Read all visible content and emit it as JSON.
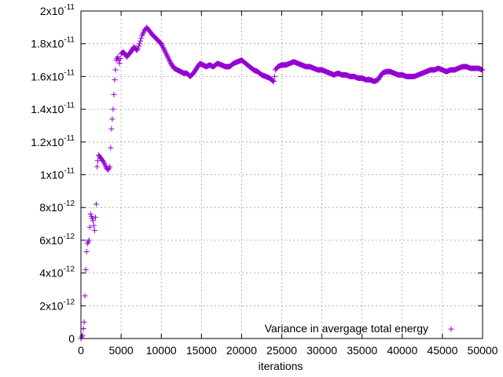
{
  "chart_data": {
    "type": "scatter",
    "xlabel": "iterations",
    "ylabel": "",
    "xlim": [
      0,
      50000
    ],
    "ylim": [
      0,
      2e-11
    ],
    "grid": true,
    "legend_position": "bottom-right",
    "x_ticks": [
      {
        "value": 0,
        "label": "0"
      },
      {
        "value": 5000,
        "label": "5000"
      },
      {
        "value": 10000,
        "label": "10000"
      },
      {
        "value": 15000,
        "label": "15000"
      },
      {
        "value": 20000,
        "label": "20000"
      },
      {
        "value": 25000,
        "label": "25000"
      },
      {
        "value": 30000,
        "label": "30000"
      },
      {
        "value": 35000,
        "label": "35000"
      },
      {
        "value": 40000,
        "label": "40000"
      },
      {
        "value": 45000,
        "label": "45000"
      },
      {
        "value": 50000,
        "label": "50000"
      }
    ],
    "y_ticks": [
      {
        "value": 0,
        "mantissa": "0",
        "exponent": ""
      },
      {
        "value": 2e-12,
        "mantissa": "2x10",
        "exponent": "-12"
      },
      {
        "value": 4e-12,
        "mantissa": "4x10",
        "exponent": "-12"
      },
      {
        "value": 6e-12,
        "mantissa": "6x10",
        "exponent": "-12"
      },
      {
        "value": 8e-12,
        "mantissa": "8x10",
        "exponent": "-12"
      },
      {
        "value": 1e-11,
        "mantissa": "1x10",
        "exponent": "-11"
      },
      {
        "value": 1.2e-11,
        "mantissa": "1.2x10",
        "exponent": "-11"
      },
      {
        "value": 1.4e-11,
        "mantissa": "1.4x10",
        "exponent": "-11"
      },
      {
        "value": 1.6e-11,
        "mantissa": "1.6x10",
        "exponent": "-11"
      },
      {
        "value": 1.8e-11,
        "mantissa": "1.8x10",
        "exponent": "-11"
      },
      {
        "value": 2e-11,
        "mantissa": "2x10",
        "exponent": "-11"
      }
    ],
    "series": [
      {
        "name": "Variance in avergage total energy",
        "color": "#9400d3",
        "marker": "plus",
        "x": [
          0,
          200,
          400,
          600,
          700,
          800,
          1000,
          1200,
          1500,
          1700,
          1900,
          2000,
          2200,
          2500,
          2800,
          3000,
          3200,
          3400,
          3600,
          3800,
          4000,
          4200,
          4400,
          4600,
          4800,
          5000,
          5300,
          5700,
          6200,
          6600,
          7000,
          7300,
          7600,
          7900,
          8200,
          8500,
          8800,
          9200,
          9600,
          10000,
          10400,
          10800,
          11200,
          11600,
          12000,
          12400,
          12800,
          13200,
          13600,
          14000,
          14400,
          14800,
          15200,
          15600,
          16000,
          16500,
          17000,
          17500,
          18000,
          18500,
          19000,
          19500,
          20000,
          20500,
          21000,
          21500,
          22000,
          22500,
          23000,
          23500,
          24000,
          24100,
          24200,
          24500,
          25000,
          25500,
          26000,
          26500,
          27000,
          27500,
          28000,
          28500,
          29000,
          29500,
          30000,
          30500,
          31000,
          31500,
          32000,
          32500,
          33000,
          33500,
          34000,
          34500,
          35000,
          35500,
          36000,
          36500,
          37000,
          37500,
          38000,
          38500,
          39000,
          39500,
          40000,
          40500,
          41000,
          41500,
          42000,
          42500,
          43000,
          43500,
          44000,
          44500,
          45000,
          45500,
          46000,
          46500,
          47000,
          47500,
          48000,
          48500,
          49000,
          49500,
          50000
        ],
        "values": [
          0,
          2e-13,
          1e-12,
          4.2e-12,
          5.3e-12,
          5.8e-12,
          6e-12,
          7.6e-12,
          7.2e-12,
          6.6e-12,
          8.2e-12,
          1.05e-11,
          1.12e-11,
          1.1e-11,
          1.08e-11,
          1.06e-11,
          1.04e-11,
          1.03e-11,
          1.05e-11,
          1.28e-11,
          1.4e-11,
          1.58e-11,
          1.7e-11,
          1.72e-11,
          1.68e-11,
          1.74e-11,
          1.75e-11,
          1.72e-11,
          1.75e-11,
          1.78e-11,
          1.76e-11,
          1.8e-11,
          1.85e-11,
          1.88e-11,
          1.9e-11,
          1.88e-11,
          1.86e-11,
          1.84e-11,
          1.82e-11,
          1.8e-11,
          1.76e-11,
          1.72e-11,
          1.68e-11,
          1.65e-11,
          1.64e-11,
          1.63e-11,
          1.62e-11,
          1.62e-11,
          1.6e-11,
          1.62e-11,
          1.65e-11,
          1.68e-11,
          1.67e-11,
          1.66e-11,
          1.67e-11,
          1.66e-11,
          1.68e-11,
          1.67e-11,
          1.66e-11,
          1.66e-11,
          1.68e-11,
          1.69e-11,
          1.7e-11,
          1.68e-11,
          1.66e-11,
          1.64e-11,
          1.63e-11,
          1.61e-11,
          1.6e-11,
          1.59e-11,
          1.57e-11,
          1.6e-11,
          1.64e-11,
          1.66e-11,
          1.67e-11,
          1.67e-11,
          1.68e-11,
          1.69e-11,
          1.68e-11,
          1.67e-11,
          1.66e-11,
          1.66e-11,
          1.65e-11,
          1.64e-11,
          1.64e-11,
          1.63e-11,
          1.62e-11,
          1.61e-11,
          1.62e-11,
          1.61e-11,
          1.61e-11,
          1.6e-11,
          1.6e-11,
          1.59e-11,
          1.59e-11,
          1.58e-11,
          1.58e-11,
          1.57e-11,
          1.58e-11,
          1.62e-11,
          1.63e-11,
          1.63e-11,
          1.62e-11,
          1.61e-11,
          1.61e-11,
          1.6e-11,
          1.6e-11,
          1.6e-11,
          1.61e-11,
          1.62e-11,
          1.63e-11,
          1.64e-11,
          1.64e-11,
          1.65e-11,
          1.64e-11,
          1.63e-11,
          1.64e-11,
          1.64e-11,
          1.65e-11,
          1.66e-11,
          1.66e-11,
          1.65e-11,
          1.65e-11,
          1.65e-11,
          1.64e-11
        ]
      }
    ]
  }
}
